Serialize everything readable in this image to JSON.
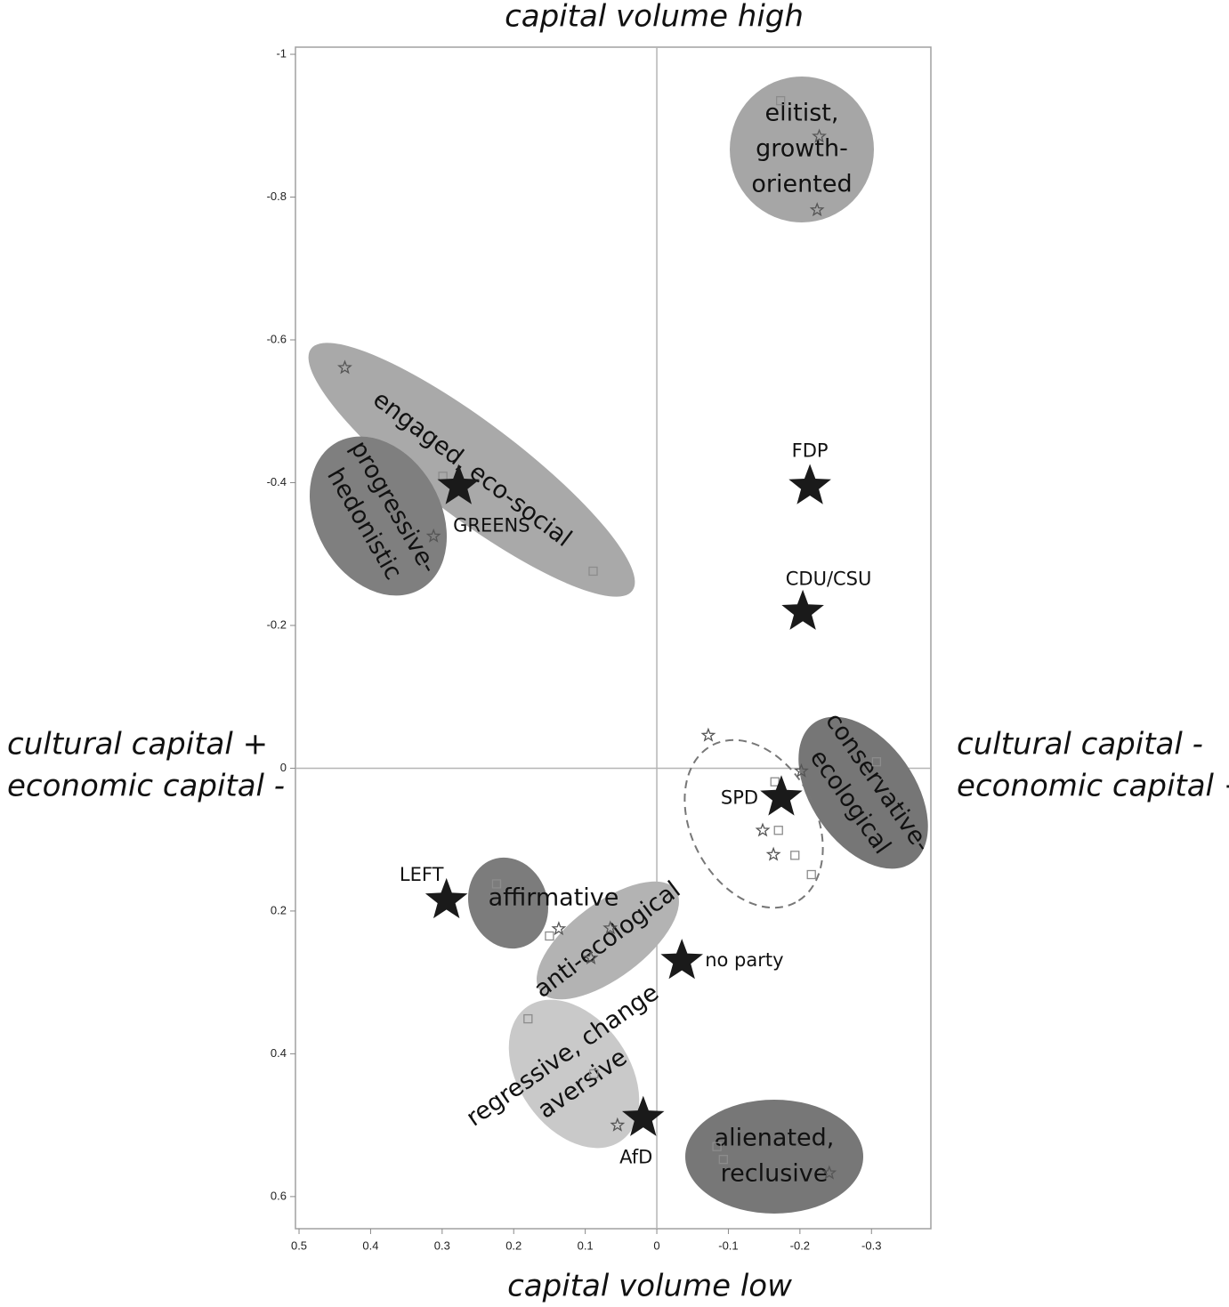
{
  "chart_data": {
    "type": "scatter",
    "x_title_top": "capital volume high",
    "x_title_bottom": "capital volume low",
    "y_title_left": [
      "cultural capital +",
      "economic capital -"
    ],
    "y_title_right": [
      "cultural capital -",
      "economic capital +"
    ],
    "xlim": [
      0.505,
      -0.383
    ],
    "ylim": [
      0.645,
      -1.01
    ],
    "xticks": [
      0.5,
      0.4,
      0.3,
      0.2,
      0.1,
      0,
      -0.1,
      -0.2,
      -0.3
    ],
    "yticks": [
      -1,
      -0.8,
      -0.6,
      -0.4,
      -0.2,
      0,
      0.2,
      0.4,
      0.6
    ],
    "zero_lines": true,
    "parties": {
      "names": [
        "GREENS",
        "FDP",
        "CDU/CSU",
        "SPD",
        "LEFT",
        "no party",
        "AfD"
      ],
      "x": [
        0.277,
        -0.214,
        -0.204,
        -0.174,
        0.294,
        -0.035,
        0.019
      ],
      "y": [
        -0.395,
        -0.395,
        -0.219,
        0.041,
        0.185,
        0.27,
        0.49
      ],
      "color": "#1a1a1a"
    },
    "squares": {
      "x": [
        -0.173,
        0.299,
        0.089,
        -0.165,
        -0.17,
        -0.193,
        -0.216,
        -0.307,
        0.224,
        0.15,
        0.18,
        0.088,
        -0.093,
        -0.084
      ],
      "y": [
        -0.935,
        -0.409,
        -0.276,
        0.019,
        0.087,
        0.122,
        0.149,
        -0.009,
        0.162,
        0.235,
        0.351,
        0.428,
        0.548,
        0.53
      ],
      "color": "#8c8c8c"
    },
    "small_stars": {
      "x": [
        0.436,
        0.312,
        -0.224,
        -0.227,
        -0.072,
        -0.202,
        -0.148,
        -0.163,
        0.137,
        0.065,
        0.055,
        -0.241,
        0.092
      ],
      "y": [
        -0.561,
        -0.325,
        -0.782,
        -0.885,
        -0.046,
        0.004,
        0.087,
        0.121,
        0.225,
        0.224,
        0.5,
        0.567,
        0.266
      ],
      "color": "#555555"
    },
    "groups": [
      {
        "lines": [
          "elitist,",
          "growth-",
          "oriented"
        ],
        "color": "#a6a6a6"
      },
      {
        "lines": [
          "engaged, eco-social"
        ],
        "color": "#a9a9a9"
      },
      {
        "lines": [
          "progressive-",
          "hedonistic"
        ],
        "color": "#7f7f7f"
      },
      {
        "lines": [
          "conservative-",
          "ecological"
        ],
        "color": "#767676"
      },
      {
        "lines": [],
        "color": "#777777",
        "dashed": true
      },
      {
        "lines": [
          "anti-ecological"
        ],
        "color": "#b3b3b3"
      },
      {
        "lines": [
          "affirmative"
        ],
        "color": "#7c7c7c"
      },
      {
        "lines": [
          "regressive, change",
          "aversive"
        ],
        "color": "#c9c9c9"
      },
      {
        "lines": [
          "alienated,",
          "reclusive"
        ],
        "color": "#777777"
      }
    ]
  }
}
